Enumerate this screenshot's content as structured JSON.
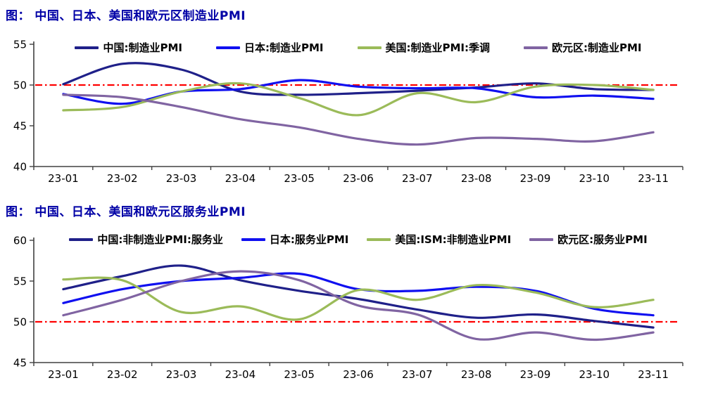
{
  "page_background": "#ffffff",
  "axis_color": "#404040",
  "tick_label_color": "#000000",
  "title_color": "#0000a6",
  "chart_data": [
    {
      "type": "line",
      "title": "图： 中国、日本、美国和欧元区制造业PMI",
      "categories": [
        "23-01",
        "23-02",
        "23-03",
        "23-04",
        "23-05",
        "23-06",
        "23-07",
        "23-08",
        "23-09",
        "23-10",
        "23-11"
      ],
      "series": [
        {
          "name": "中国:制造业PMI",
          "color": "#1f2089",
          "values": [
            50.1,
            52.6,
            51.9,
            49.2,
            48.8,
            49.0,
            49.3,
            49.7,
            50.2,
            49.5,
            49.4
          ]
        },
        {
          "name": "日本:制造业PMI",
          "color": "#1010f0",
          "values": [
            48.9,
            47.7,
            49.2,
            49.5,
            50.6,
            49.8,
            49.6,
            49.6,
            48.5,
            48.7,
            48.3
          ]
        },
        {
          "name": "美国:制造业PMI:季调",
          "color": "#9bbb59",
          "values": [
            46.9,
            47.3,
            49.2,
            50.2,
            48.4,
            46.3,
            49.0,
            47.9,
            49.8,
            50.0,
            49.4
          ]
        },
        {
          "name": "欧元区:制造业PMI",
          "color": "#8064a2",
          "values": [
            48.8,
            48.5,
            47.3,
            45.8,
            44.8,
            43.4,
            42.7,
            43.5,
            43.4,
            43.1,
            44.2
          ]
        }
      ],
      "ylim": [
        40,
        55
      ],
      "yticks": [
        40,
        45,
        50,
        55
      ],
      "ref_line": {
        "value": 50,
        "color": "#ff0000",
        "style": "dash-dot"
      },
      "legend_position": "top",
      "grid": false,
      "xlabel": "",
      "ylabel": ""
    },
    {
      "type": "line",
      "title": "图： 中国、日本、美国和欧元区服务业PMI",
      "categories": [
        "23-01",
        "23-02",
        "23-03",
        "23-04",
        "23-05",
        "23-06",
        "23-07",
        "23-08",
        "23-09",
        "23-10",
        "23-11"
      ],
      "series": [
        {
          "name": "中国:非制造业PMI:服务业",
          "color": "#1f2089",
          "values": [
            54.0,
            55.6,
            56.9,
            55.1,
            53.8,
            52.8,
            51.5,
            50.5,
            50.9,
            50.1,
            49.3
          ]
        },
        {
          "name": "日本:服务业PMI",
          "color": "#1010f0",
          "values": [
            52.3,
            54.0,
            55.0,
            55.4,
            55.9,
            54.0,
            53.8,
            54.3,
            53.8,
            51.6,
            50.8
          ]
        },
        {
          "name": "美国:ISM:非制造业PMI",
          "color": "#9bbb59",
          "values": [
            55.2,
            55.1,
            51.2,
            51.9,
            50.3,
            53.9,
            52.7,
            54.5,
            53.6,
            51.8,
            52.7
          ]
        },
        {
          "name": "欧元区:服务业PMI",
          "color": "#8064a2",
          "values": [
            50.8,
            52.7,
            55.0,
            56.2,
            55.1,
            52.0,
            50.9,
            47.9,
            48.7,
            47.8,
            48.7
          ]
        }
      ],
      "ylim": [
        45,
        60
      ],
      "yticks": [
        45,
        50,
        55,
        60
      ],
      "ref_line": {
        "value": 50,
        "color": "#ff0000",
        "style": "dash-dot"
      },
      "legend_position": "top",
      "grid": false,
      "xlabel": "",
      "ylabel": ""
    }
  ]
}
